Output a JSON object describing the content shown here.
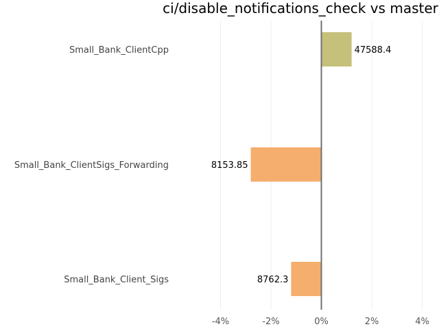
{
  "chart_data": {
    "type": "bar",
    "orientation": "horizontal",
    "title": "ci/disable_notifications_check vs master",
    "xlabel": "",
    "ylabel": "",
    "xlim": [
      -4.6,
      4.6
    ],
    "x_ticks": [
      -4,
      -2,
      0,
      2,
      4
    ],
    "x_tick_labels": [
      "-4%",
      "-2%",
      "0%",
      "2%",
      "4%"
    ],
    "grid": true,
    "categories": [
      "Small_Bank_ClientCpp",
      "Small_Bank_ClientSigs_Forwarding",
      "Small_Bank_Client_Sigs"
    ],
    "values": [
      1.2,
      -2.8,
      -1.2
    ],
    "data_labels": [
      "47588.4",
      "8153.85",
      "8762.3"
    ],
    "colors": {
      "positive": "#c5c07a",
      "negative": "#f5ae6d",
      "zero_line": "#707070",
      "grid": "#eeeeee"
    }
  }
}
